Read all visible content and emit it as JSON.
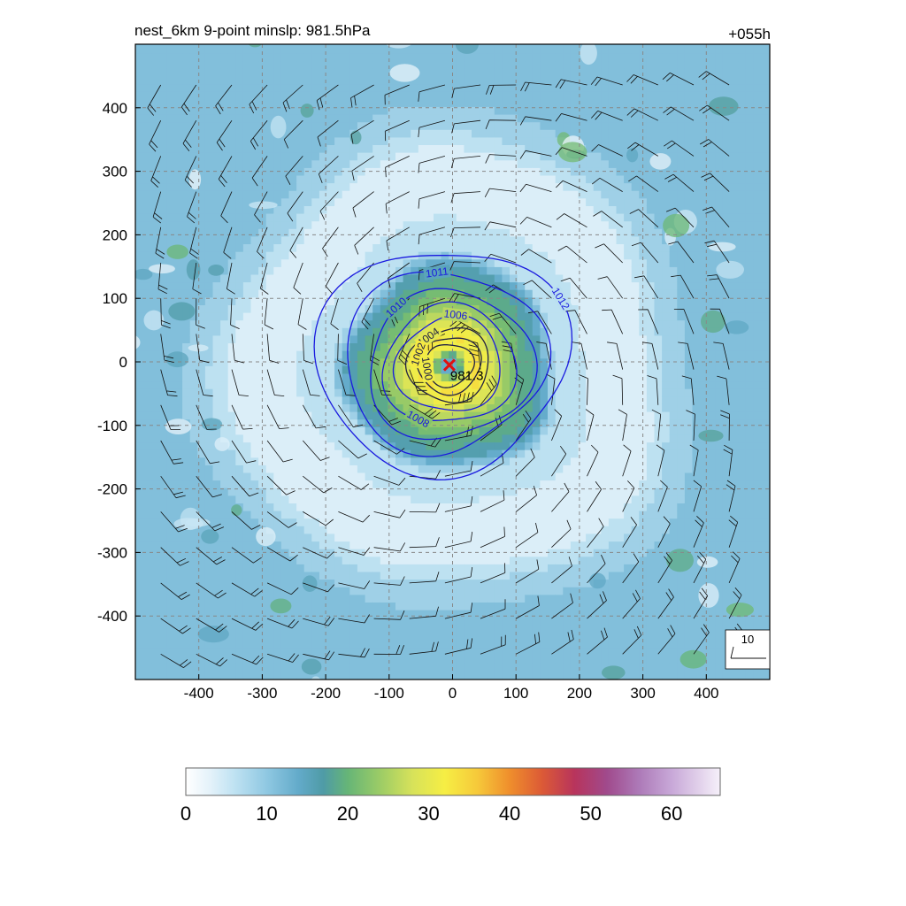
{
  "title": "nest_6km  9-point minslp: 981.5hPa",
  "forecast_hour": "+055h",
  "center_label": "981.3",
  "barb_legend_label": "10",
  "colors": {
    "isobar": "#1a1adf",
    "isobar_inner": "#222244",
    "center_marker": "#e01010",
    "grid": "#888888",
    "barb": "#111111"
  },
  "chart_data": {
    "type": "heatmap",
    "title": "nest_6km  9-point minslp: 981.5hPa",
    "xlim": [
      -500,
      500
    ],
    "ylim": [
      -500,
      500
    ],
    "x_ticks": [
      -400,
      -300,
      -200,
      -100,
      0,
      100,
      200,
      300,
      400
    ],
    "x_tick_labels": [
      "-400",
      "-300",
      "-200",
      "-100",
      "0",
      "100",
      "200",
      "300",
      "400"
    ],
    "y_ticks": [
      -400,
      -300,
      -200,
      -100,
      0,
      100,
      200,
      300,
      400
    ],
    "y_tick_labels": [
      "-400",
      "-300",
      "-200",
      "-100",
      "0",
      "100",
      "200",
      "300",
      "400"
    ],
    "grid": true,
    "colorbar": {
      "range": [
        0,
        66
      ],
      "ticks": [
        0,
        10,
        20,
        30,
        40,
        50,
        60
      ],
      "tick_labels": [
        "0",
        "10",
        "20",
        "30",
        "40",
        "50",
        "60"
      ],
      "stops": [
        {
          "value": 0,
          "color": "#ffffff"
        },
        {
          "value": 3,
          "color": "#e4f2fa"
        },
        {
          "value": 6,
          "color": "#bfe2f2"
        },
        {
          "value": 10,
          "color": "#8fc8e2"
        },
        {
          "value": 14,
          "color": "#62aac9"
        },
        {
          "value": 17,
          "color": "#4f9ba6"
        },
        {
          "value": 20,
          "color": "#66b577"
        },
        {
          "value": 24,
          "color": "#9ccc66"
        },
        {
          "value": 28,
          "color": "#d7e25a"
        },
        {
          "value": 32,
          "color": "#f6ee44"
        },
        {
          "value": 36,
          "color": "#f6c93a"
        },
        {
          "value": 40,
          "color": "#ef8e2c"
        },
        {
          "value": 44,
          "color": "#dc5a36"
        },
        {
          "value": 48,
          "color": "#b8345c"
        },
        {
          "value": 52,
          "color": "#a04a8c"
        },
        {
          "value": 56,
          "color": "#ad7ab8"
        },
        {
          "value": 60,
          "color": "#c8a8d8"
        },
        {
          "value": 64,
          "color": "#e6d8ee"
        },
        {
          "value": 66,
          "color": "#f6f0fa"
        }
      ]
    },
    "isobars": [
      {
        "level": 1012,
        "label": "1012",
        "radius_km": 190
      },
      {
        "level": 1011,
        "label": "1011",
        "radius_km": 152
      },
      {
        "level": 1010,
        "label": "1010",
        "radius_km": 125
      },
      {
        "level": 1008,
        "label": "1008",
        "radius_km": 100
      },
      {
        "level": 1006,
        "label": "1006",
        "radius_km": 80
      },
      {
        "level": 1004,
        "label": "1004",
        "radius_km": 62
      },
      {
        "level": 1002,
        "label": "1002",
        "radius_km": 48
      },
      {
        "level": 1000,
        "label": "1000",
        "radius_km": 36
      }
    ],
    "wind_speed_rings": [
      {
        "radius_km": 0,
        "speed": 12
      },
      {
        "radius_km": 12,
        "speed": 14
      },
      {
        "radius_km": 28,
        "speed": 30
      },
      {
        "radius_km": 45,
        "speed": 33
      },
      {
        "radius_km": 65,
        "speed": 29
      },
      {
        "radius_km": 90,
        "speed": 24
      },
      {
        "radius_km": 120,
        "speed": 19
      },
      {
        "radius_km": 150,
        "speed": 16
      },
      {
        "radius_km": 175,
        "speed": 7
      },
      {
        "radius_km": 250,
        "speed": 4
      },
      {
        "radius_km": 330,
        "speed": 5
      },
      {
        "radius_km": 370,
        "speed": 9
      },
      {
        "radius_km": 450,
        "speed": 12
      },
      {
        "radius_km": 720,
        "speed": 12
      }
    ],
    "minimum_pressure": {
      "x": -5,
      "y": -5,
      "value": 981.3,
      "label": "981.3"
    }
  }
}
